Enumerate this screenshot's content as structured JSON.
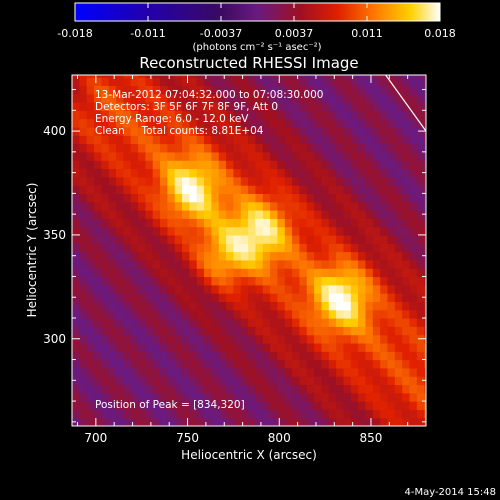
{
  "chart_data": {
    "type": "heatmap",
    "title": "Reconstructed RHESSI Image",
    "xlabel": "Heliocentric X (arcsec)",
    "ylabel": "Heliocentric Y (arcsec)",
    "xlim": [
      687,
      880
    ],
    "ylim": [
      258,
      427
    ],
    "x_ticks": [
      700,
      750,
      800,
      850
    ],
    "y_ticks": [
      300,
      350,
      400
    ],
    "colorbar": {
      "label": "(photons cm⁻² s⁻¹ asec⁻²)",
      "ticks": [
        "-0.018",
        "-0.011",
        "-0.0037",
        "0.0037",
        "0.011",
        "0.018"
      ],
      "range": [
        -0.018,
        0.018
      ],
      "stops": [
        "#0000ff",
        "#2200aa",
        "#3b0a62",
        "#6a1a80",
        "#a01020",
        "#e02000",
        "#ff7800",
        "#ffd000",
        "#ffffff"
      ]
    },
    "annotations": [
      "13-Mar-2012 07:04:32.000 to 07:08:30.000",
      "Detectors: 3F 5F 6F 7F 8F 9F, Att 0",
      "Energy Range: 6.0 - 12.0 keV",
      "Clean     Total counts: 8.81E+04"
    ],
    "peak_label": "Position of Peak = [834,320]",
    "sources": [
      {
        "x": 752,
        "y": 372,
        "peak": 0.95
      },
      {
        "x": 790,
        "y": 352,
        "peak": 0.85
      },
      {
        "x": 834,
        "y": 320,
        "peak": 1.0
      },
      {
        "x": 770,
        "y": 340,
        "peak": 0.7
      }
    ],
    "limb_line": [
      [
        858,
        427
      ],
      [
        880,
        400
      ]
    ],
    "background": "#3b0a62",
    "date_stamp": "4-May-2014 15:48"
  }
}
